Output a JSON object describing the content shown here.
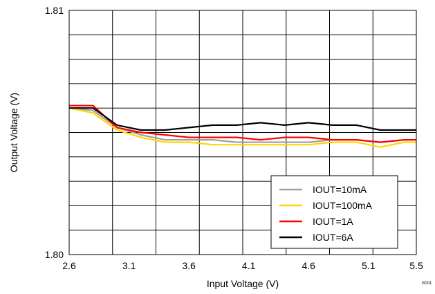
{
  "chart_data": {
    "type": "line",
    "xlabel": "Input Voltage (V)",
    "ylabel": "Output Voltage (V)",
    "xlim": [
      2.6,
      5.5
    ],
    "ylim": [
      1.8,
      1.81
    ],
    "x_ticks": [
      "2.6",
      "3.1",
      "3.6",
      "4.1",
      "4.6",
      "5.1",
      "5.5"
    ],
    "y_ticks": [
      "1.80",
      "1.81"
    ],
    "grid": true,
    "legend_position": "bottom-right",
    "figure_tag": "G001",
    "series": [
      {
        "name": "IOUT=10mA",
        "color": "#a0a0a0",
        "x": [
          2.6,
          2.8,
          3.0,
          3.2,
          3.4,
          3.6,
          3.8,
          4.0,
          4.2,
          4.4,
          4.6,
          4.8,
          5.0,
          5.2,
          5.4,
          5.5
        ],
        "y": [
          1.806,
          1.8059,
          1.8052,
          1.8049,
          1.8047,
          1.8047,
          1.8047,
          1.8046,
          1.8046,
          1.8046,
          1.8046,
          1.8047,
          1.8047,
          1.8046,
          1.8047,
          1.8047
        ]
      },
      {
        "name": "IOUT=100mA",
        "color": "#ffd500",
        "x": [
          2.6,
          2.8,
          3.0,
          3.2,
          3.4,
          3.6,
          3.8,
          4.0,
          4.2,
          4.4,
          4.6,
          4.8,
          5.0,
          5.2,
          5.4,
          5.5
        ],
        "y": [
          1.806,
          1.8058,
          1.8051,
          1.8048,
          1.8046,
          1.8046,
          1.8045,
          1.8045,
          1.8045,
          1.8045,
          1.8045,
          1.8046,
          1.8046,
          1.8044,
          1.8046,
          1.8046
        ]
      },
      {
        "name": "IOUT=1A",
        "color": "#ff0000",
        "x": [
          2.6,
          2.8,
          3.0,
          3.2,
          3.4,
          3.6,
          3.8,
          4.0,
          4.2,
          4.4,
          4.6,
          4.8,
          5.0,
          5.2,
          5.4,
          5.5
        ],
        "y": [
          1.8061,
          1.8061,
          1.8052,
          1.805,
          1.8049,
          1.8048,
          1.8048,
          1.8048,
          1.8047,
          1.8048,
          1.8048,
          1.8047,
          1.8047,
          1.8046,
          1.8047,
          1.8047
        ]
      },
      {
        "name": "IOUT=6A",
        "color": "#000000",
        "x": [
          2.6,
          2.8,
          3.0,
          3.2,
          3.4,
          3.6,
          3.8,
          4.0,
          4.2,
          4.4,
          4.6,
          4.8,
          5.0,
          5.2,
          5.4,
          5.5
        ],
        "y": [
          1.806,
          1.806,
          1.8053,
          1.8051,
          1.8051,
          1.8052,
          1.8053,
          1.8053,
          1.8054,
          1.8053,
          1.8054,
          1.8053,
          1.8053,
          1.8051,
          1.8051,
          1.8051
        ]
      }
    ]
  }
}
